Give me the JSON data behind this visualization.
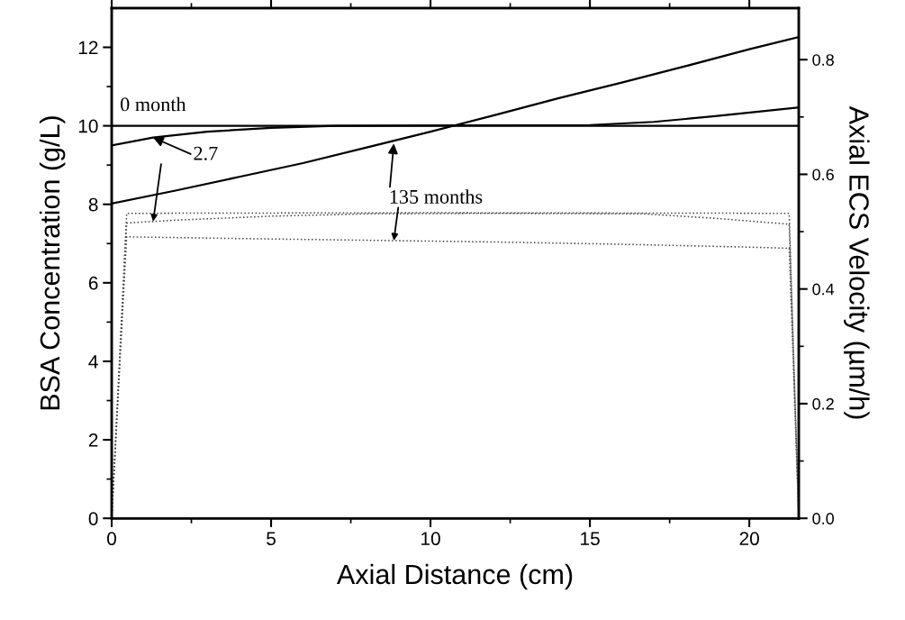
{
  "chart_data": {
    "type": "line",
    "xlabel": "Axial Distance (cm)",
    "ylabel": "BSA Concentration (g/L)",
    "y2label": "Axial ECS Velocity (µm/h)",
    "xlim": [
      0,
      21.55
    ],
    "ylim": [
      0,
      13
    ],
    "y2lim": [
      0,
      0.89
    ],
    "xticks": [
      0,
      {
        "value": 2.5,
        "label": null
      },
      5,
      {
        "value": 7.5,
        "label": null
      },
      10,
      {
        "value": 12.5,
        "label": null
      },
      15,
      {
        "value": 17.5,
        "label": null
      },
      20
    ],
    "yticks": [
      0,
      {
        "value": 1,
        "label": null
      },
      2,
      {
        "value": 3,
        "label": null
      },
      4,
      {
        "value": 5,
        "label": null
      },
      6,
      {
        "value": 7,
        "label": null
      },
      8,
      {
        "value": 9,
        "label": null
      },
      10,
      {
        "value": 11,
        "label": null
      },
      12
    ],
    "y2ticks": [
      {
        "value": 0,
        "label": "0.0"
      },
      {
        "value": 0.1,
        "label": null
      },
      0.2,
      {
        "value": 0.3,
        "label": null
      },
      0.4,
      {
        "value": 0.5,
        "label": null
      },
      0.6,
      {
        "value": 0.7,
        "label": null
      },
      0.8
    ],
    "grid": false,
    "marker": "none",
    "series": [
      {
        "color": "#000000",
        "line_style": "solid",
        "x": [
          0,
          21.55
        ],
        "values": [
          10,
          10
        ]
      },
      {
        "color": "#000000",
        "line_style": "solid",
        "x": [
          0,
          1.3,
          3,
          5,
          7,
          15,
          17,
          19,
          21.55
        ],
        "values": [
          9.5,
          9.7,
          9.85,
          9.95,
          10,
          10.02,
          10.1,
          10.25,
          10.47
        ]
      },
      {
        "color": "#000000",
        "line_style": "solid",
        "x": [
          0,
          2,
          4,
          6,
          8,
          10,
          12,
          14,
          16,
          18,
          20,
          21.55
        ],
        "values": [
          8.02,
          8.35,
          8.7,
          9.05,
          9.45,
          9.85,
          10.27,
          10.7,
          11.1,
          11.52,
          11.95,
          12.26
        ]
      },
      {
        "color": "#444444",
        "line_style": "dotted",
        "axis": "y2",
        "x": [
          0,
          0.47,
          10,
          21.25,
          21.55
        ],
        "values": [
          0,
          0.532,
          0.533,
          0.532,
          0
        ]
      },
      {
        "color": "#444444",
        "line_style": "dotted",
        "axis": "y2",
        "x": [
          0,
          0.47,
          2,
          5,
          8,
          12,
          16.7,
          19,
          21.25,
          21.55
        ],
        "values": [
          0,
          0.515,
          0.52,
          0.527,
          0.531,
          0.532,
          0.531,
          0.523,
          0.513,
          0
        ]
      },
      {
        "color": "#444444",
        "line_style": "dotted",
        "axis": "y2",
        "x": [
          0,
          0.47,
          4,
          8,
          12,
          16,
          20,
          21.25,
          21.55
        ],
        "values": [
          0,
          0.491,
          0.488,
          0.485,
          0.482,
          0.478,
          0.473,
          0.471,
          0
        ]
      }
    ],
    "annotations": [
      "0 month",
      {
        "text": "2.7",
        "x": 1.3,
        "y": 9.7
      },
      {
        "text": "135 months",
        "x": 8.85,
        "y": 9.55
      }
    ]
  }
}
